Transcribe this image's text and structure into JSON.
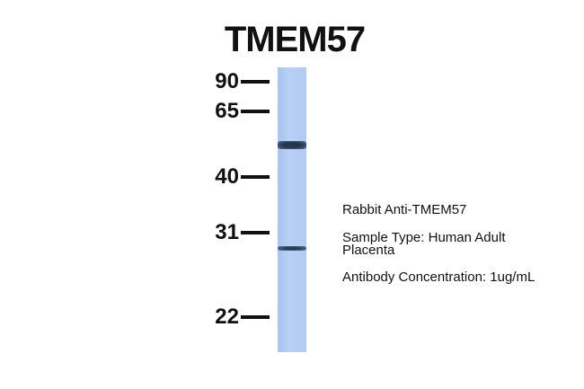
{
  "title": "TMEM57",
  "markers": [
    {
      "label": "90",
      "kda": 90
    },
    {
      "label": "65",
      "kda": 65
    },
    {
      "label": "40",
      "kda": 40
    },
    {
      "label": "31",
      "kda": 31
    },
    {
      "label": "22",
      "kda": 22
    }
  ],
  "bands": [
    {
      "position_kda": 50,
      "intensity": "strong"
    },
    {
      "position_kda": 29,
      "intensity": "moderate"
    }
  ],
  "info": {
    "antibody": "Rabbit Anti-TMEM57",
    "sample_line1": "Sample Type: Human Adult",
    "sample_line2": "Placenta",
    "concentration": "Antibody Concentration: 1ug/mL"
  },
  "colors": {
    "lane": "#b3cbf2",
    "band": "#2b3e5c"
  }
}
